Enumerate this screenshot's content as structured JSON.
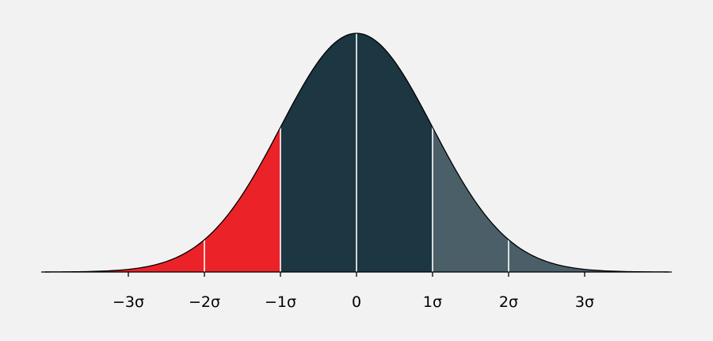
{
  "chart_data": {
    "type": "area",
    "title": "",
    "xlabel": "",
    "ylabel": "",
    "xlim": [
      -4.1,
      4.1
    ],
    "distribution": "normal",
    "mean": 0,
    "sd": 1,
    "tick_values": [
      -3,
      -2,
      -1,
      0,
      1,
      2,
      3
    ],
    "tick_labels": [
      "−3σ",
      "−2σ",
      "−1σ",
      "0",
      "1σ",
      "2σ",
      "3σ"
    ],
    "regions": [
      {
        "from": -4.1,
        "to": -1,
        "color": "#ec2229"
      },
      {
        "from": -1,
        "to": 1,
        "color": "#1c3642"
      },
      {
        "from": 1,
        "to": 4.1,
        "color": "#4b5f69"
      }
    ],
    "divider_lines_at": [
      -2,
      -1,
      0,
      1,
      2
    ],
    "divider_color": "#ffffff",
    "outline_color": "#000000",
    "background_color": "#f2f2f2"
  }
}
